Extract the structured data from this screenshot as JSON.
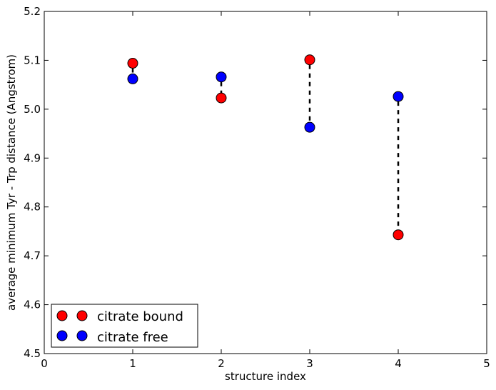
{
  "chart_data": {
    "type": "scatter",
    "title": "",
    "xlabel": "structure index",
    "ylabel": "average minimum Tyr - Trp distance (Angstrom)",
    "xlim": [
      0,
      5
    ],
    "ylim": [
      4.5,
      5.2
    ],
    "xticks": [
      0,
      1,
      2,
      3,
      4,
      5
    ],
    "xtick_labels": [
      "0",
      "1",
      "2",
      "3",
      "4",
      "5"
    ],
    "yticks": [
      4.5,
      4.6,
      4.7,
      4.8,
      4.9,
      5.0,
      5.1,
      5.2
    ],
    "ytick_labels": [
      "4.5",
      "4.6",
      "4.7",
      "4.8",
      "4.9",
      "5.0",
      "5.1",
      "5.2"
    ],
    "grid": false,
    "legend_position": "lower-left",
    "x": [
      1,
      2,
      3,
      4
    ],
    "series": [
      {
        "name": "citrate bound",
        "color": "#ff0000",
        "marker": "circle",
        "values": [
          5.094,
          5.023,
          5.101,
          4.743
        ]
      },
      {
        "name": "citrate free",
        "color": "#0000ff",
        "marker": "circle",
        "values": [
          5.062,
          5.066,
          4.963,
          5.026
        ]
      }
    ],
    "connectors": {
      "style": "dashed",
      "color": "#000000",
      "description": "pairs each citrate bound / citrate free point at the same structure index"
    }
  }
}
